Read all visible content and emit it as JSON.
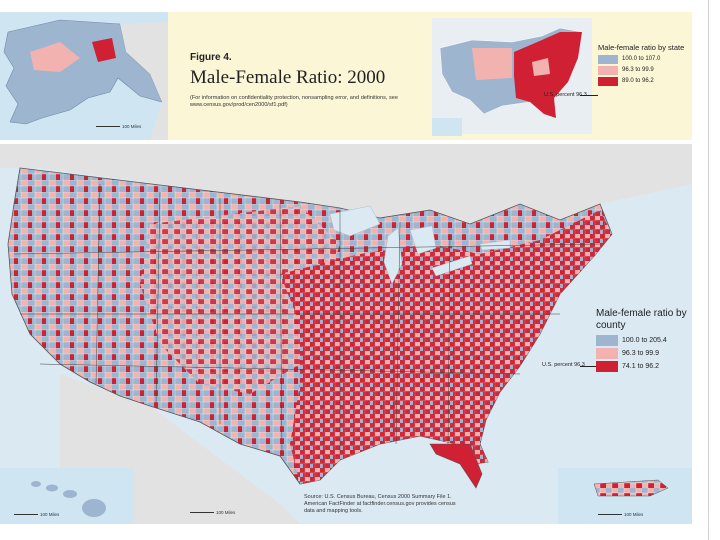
{
  "header": {
    "figure_label": "Figure 4.",
    "title": "Male-Female Ratio:  2000",
    "note": "(For information on confidentiality protection, nonsampling error, and definitions, see www.census.gov/prod/cen2000/sf1.pdf)"
  },
  "state_legend": {
    "title": "Male-female ratio by state",
    "items": [
      {
        "label": "100.0 to 107.0",
        "color": "#9db5cf"
      },
      {
        "label": "96.3 to 99.9",
        "color": "#f2b3b0"
      },
      {
        "label": "89.0 to 96.2",
        "color": "#cf2133"
      }
    ],
    "us_percent": "U.S. percent 96.3"
  },
  "county_legend": {
    "title": "Male-female ratio by county",
    "items": [
      {
        "label": "100.0 to 205.4",
        "color": "#9db5cf"
      },
      {
        "label": "96.3 to 99.9",
        "color": "#f2b3b0"
      },
      {
        "label": "74.1 to 96.2",
        "color": "#cf2133"
      }
    ],
    "us_percent": "U.S. percent 96.3"
  },
  "scales": {
    "alaska": "100 Miles",
    "hawaii": "100 Miles",
    "mainland": "100 Miles",
    "puerto_rico": "100 Miles"
  },
  "source": "Source: U.S. Census Bureau, Census 2000 Summary File 1.  American FactFinder at factfinder.census.gov provides census data and mapping tools.",
  "colors": {
    "high": "#9db5cf",
    "mid": "#f2b3b0",
    "low": "#cf2133",
    "water": "#dbe9f2",
    "land_outside": "#e2e2e2",
    "header_bg": "#fbf6d6"
  }
}
